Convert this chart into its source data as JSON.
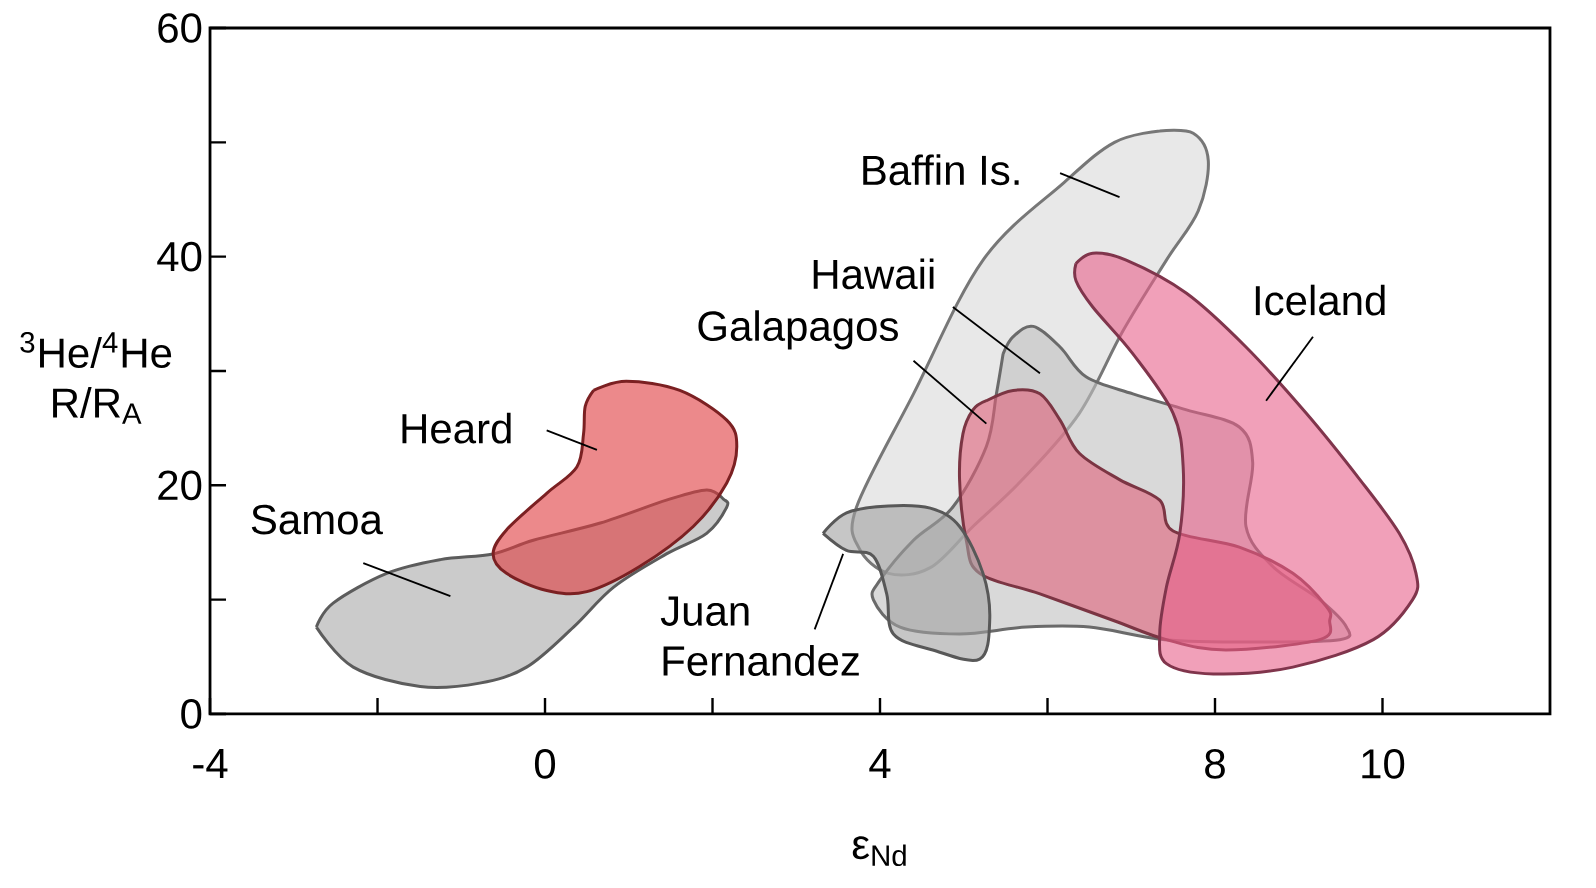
{
  "chart_data": {
    "type": "area",
    "xlabel": "ε$_{Nd}$",
    "ylabel": "$^{3}$He/$^{4}$He R/R$_{A}$",
    "xlim": [
      -4,
      12
    ],
    "ylim": [
      0,
      60
    ],
    "xticks": [
      -4,
      {
        "value": -2,
        "label": null
      },
      0,
      {
        "value": 2,
        "label": null
      },
      4,
      {
        "value": 6,
        "label": null
      },
      8,
      10
    ],
    "yticks": [
      0,
      {
        "value": 10,
        "label": null
      },
      20,
      {
        "value": 30,
        "label": null
      },
      40,
      {
        "value": 50,
        "label": null
      },
      60
    ],
    "marker": "none",
    "line_style": "solid",
    "series": [
      {
        "name": "Baffin Is.",
        "color": "#d8d8d8",
        "x": [
          7.34,
          7.74,
          7.92,
          7.8,
          7.42,
          6.9,
          6.38,
          5.7,
          5.11,
          4.6,
          4.1,
          3.75,
          3.72,
          4.4,
          5.23,
          6.2,
          6.8
        ],
        "values": [
          51.0,
          50.8,
          48.4,
          44.0,
          39.7,
          33.5,
          26.3,
          20.5,
          16.4,
          12.8,
          12.3,
          14.5,
          18.1,
          28.0,
          39.7,
          46.5,
          50.0
        ]
      },
      {
        "name": "Samoa",
        "color": "#a8a8a8",
        "x": [
          -2.73,
          -2.29,
          -1.49,
          -0.78,
          -0.22,
          0.34,
          0.82,
          1.45,
          1.93,
          2.17,
          2.13,
          1.93,
          1.45,
          0.66,
          -0.14,
          -0.62,
          -1.25,
          -1.89,
          -2.53
        ],
        "values": [
          7.6,
          4.1,
          2.4,
          2.7,
          4.1,
          7.6,
          11.1,
          14.0,
          15.8,
          18.1,
          18.8,
          19.6,
          18.7,
          16.7,
          15.2,
          14.0,
          13.5,
          12.3,
          9.7
        ]
      },
      {
        "name": "Heard",
        "color": "#e03a3e",
        "x": [
          0.58,
          0.97,
          1.61,
          2.17,
          2.29,
          2.17,
          1.77,
          1.13,
          0.5,
          0.02,
          -0.46,
          -0.62,
          -0.46,
          0.02,
          0.38,
          0.46,
          0.48
        ],
        "values": [
          28.3,
          29.1,
          28.3,
          25.7,
          23.4,
          20.2,
          16.4,
          12.9,
          10.7,
          10.8,
          12.3,
          14.0,
          16.1,
          19.3,
          21.6,
          24.5,
          26.9
        ]
      },
      {
        "name": "Hawaii",
        "color": "#c0c0c0",
        "x": [
          5.47,
          5.59,
          5.83,
          6.15,
          6.46,
          7.02,
          7.66,
          8.29,
          8.45,
          8.37,
          8.69,
          9.25,
          9.57,
          9.49,
          8.5,
          7.4,
          6.5,
          5.75,
          4.95,
          4.24,
          3.92,
          4.0,
          4.4,
          4.87,
          5.27,
          5.39
        ],
        "values": [
          31.5,
          33.0,
          33.9,
          32.1,
          29.5,
          28.0,
          26.6,
          25.1,
          22.0,
          16.4,
          12.9,
          10.0,
          7.6,
          6.5,
          6.3,
          6.5,
          7.6,
          7.6,
          7.0,
          7.6,
          10.0,
          11.7,
          15.2,
          18.1,
          23.4,
          28.0
        ]
      },
      {
        "name": "Galapagos",
        "color": "#e0607a",
        "x": [
          5.27,
          5.59,
          5.91,
          6.15,
          6.38,
          6.86,
          7.34,
          7.5,
          8.29,
          8.93,
          9.33,
          9.37,
          9.25,
          8.13,
          7.42,
          6.78,
          5.91,
          5.19,
          5.03,
          4.95,
          4.99,
          5.11
        ],
        "values": [
          27.4,
          28.3,
          28.0,
          25.7,
          22.8,
          20.5,
          18.7,
          16.0,
          14.6,
          12.3,
          9.4,
          8.2,
          6.5,
          5.6,
          6.5,
          8.2,
          10.5,
          12.3,
          15.2,
          20.5,
          24.5,
          26.6
        ]
      },
      {
        "name": "Juan Fernandez",
        "color": "#a0a0a0",
        "x": [
          3.32,
          3.6,
          4.1,
          4.6,
          4.95,
          5.23,
          5.31,
          5.19,
          4.63,
          4.16,
          4.08,
          3.92,
          3.6
        ],
        "values": [
          15.8,
          17.6,
          18.2,
          18.0,
          16.4,
          12.3,
          8.2,
          4.8,
          5.6,
          7.0,
          10.5,
          13.8,
          14.3
        ]
      },
      {
        "name": "Iceland",
        "color": "#e8608a",
        "x": [
          6.34,
          6.54,
          6.94,
          7.66,
          8.37,
          9.09,
          9.73,
          10.2,
          10.4,
          10.36,
          9.89,
          8.93,
          7.98,
          7.42,
          7.34,
          7.42,
          7.58,
          7.62,
          7.5,
          7.02,
          6.54,
          6.34
        ],
        "values": [
          39.4,
          40.3,
          39.7,
          36.8,
          32.1,
          26.3,
          20.5,
          15.8,
          12.3,
          10.0,
          6.5,
          4.1,
          3.5,
          4.4,
          7.0,
          11.1,
          15.8,
          21.6,
          26.3,
          31.5,
          35.6,
          37.9
        ]
      }
    ]
  }
}
